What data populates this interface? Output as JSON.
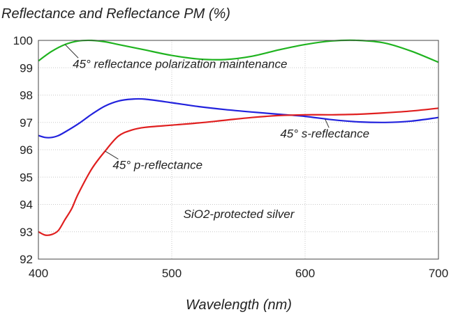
{
  "chart_data": {
    "type": "line",
    "title": "Reflectance and Reflectance PM (%)",
    "xlabel": "Wavelength (nm)",
    "ylabel": "",
    "xlim": [
      400,
      700
    ],
    "ylim": [
      92,
      100
    ],
    "x_ticks": [
      400,
      500,
      600,
      700
    ],
    "y_ticks": [
      92,
      93,
      94,
      95,
      96,
      97,
      98,
      99,
      100
    ],
    "grid": true,
    "series": [
      {
        "color": "#1fb31f",
        "x": [
          400,
          410,
          420,
          430,
          440,
          450,
          460,
          480,
          500,
          520,
          540,
          560,
          580,
          600,
          620,
          640,
          660,
          680,
          700
        ],
        "y": [
          99.25,
          99.6,
          99.85,
          99.98,
          100.0,
          99.95,
          99.85,
          99.65,
          99.45,
          99.32,
          99.3,
          99.42,
          99.65,
          99.85,
          99.98,
          100.0,
          99.9,
          99.6,
          99.2
        ]
      },
      {
        "color": "#2222dd",
        "x": [
          400,
          405,
          410,
          415,
          420,
          430,
          440,
          450,
          460,
          470,
          480,
          500,
          520,
          540,
          560,
          580,
          600,
          620,
          640,
          660,
          680,
          700
        ],
        "y": [
          96.52,
          96.45,
          96.45,
          96.52,
          96.65,
          96.95,
          97.3,
          97.6,
          97.78,
          97.85,
          97.85,
          97.72,
          97.58,
          97.47,
          97.38,
          97.3,
          97.22,
          97.1,
          97.02,
          97.0,
          97.05,
          97.18
        ]
      },
      {
        "color": "#e01f1f",
        "x": [
          400,
          405,
          410,
          415,
          420,
          425,
          430,
          440,
          450,
          460,
          470,
          480,
          500,
          520,
          540,
          560,
          580,
          600,
          620,
          640,
          660,
          680,
          700
        ],
        "y": [
          93.0,
          92.88,
          92.9,
          93.05,
          93.45,
          93.85,
          94.4,
          95.3,
          95.95,
          96.5,
          96.72,
          96.82,
          96.9,
          96.98,
          97.08,
          97.18,
          97.25,
          97.28,
          97.28,
          97.3,
          97.35,
          97.42,
          97.52
        ]
      }
    ],
    "annotations": [
      {
        "text": "45° reflectance polarization maintenance",
        "x": 432,
        "y": 99.0,
        "point_x": 420,
        "point_y": 99.85
      },
      {
        "text": "45° s-reflectance",
        "x": 620,
        "y": 96.45,
        "point_x": 615,
        "point_y": 97.12
      },
      {
        "text": "45° p-reflectance",
        "x": 462,
        "y": 95.3,
        "point_x": 450,
        "point_y": 95.95
      },
      {
        "text": "SiO2-protected silver",
        "x": 515,
        "y": 93.5
      }
    ]
  }
}
